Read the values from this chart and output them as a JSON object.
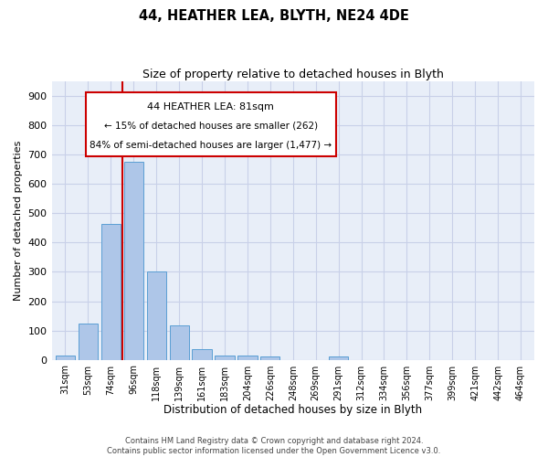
{
  "title": "44, HEATHER LEA, BLYTH, NE24 4DE",
  "subtitle": "Size of property relative to detached houses in Blyth",
  "xlabel": "Distribution of detached houses by size in Blyth",
  "ylabel": "Number of detached properties",
  "categories": [
    "31sqm",
    "53sqm",
    "74sqm",
    "96sqm",
    "118sqm",
    "139sqm",
    "161sqm",
    "183sqm",
    "204sqm",
    "226sqm",
    "248sqm",
    "269sqm",
    "291sqm",
    "312sqm",
    "334sqm",
    "356sqm",
    "377sqm",
    "399sqm",
    "421sqm",
    "442sqm",
    "464sqm"
  ],
  "values": [
    15,
    125,
    465,
    675,
    302,
    118,
    35,
    15,
    13,
    10,
    0,
    0,
    10,
    0,
    0,
    0,
    0,
    0,
    0,
    0,
    0
  ],
  "bar_color": "#aec6e8",
  "bar_edgecolor": "#5a9fd4",
  "vline_index": 3,
  "marker_label": "44 HEATHER LEA: 81sqm",
  "annotation_line1": "← 15% of detached houses are smaller (262)",
  "annotation_line2": "84% of semi-detached houses are larger (1,477) →",
  "vline_color": "#cc0000",
  "annotation_box_edgecolor": "#cc0000",
  "ylim": [
    0,
    950
  ],
  "yticks": [
    0,
    100,
    200,
    300,
    400,
    500,
    600,
    700,
    800,
    900
  ],
  "background_color": "#e8eef8",
  "grid_color": "#c8d0e8",
  "footer_line1": "Contains HM Land Registry data © Crown copyright and database right 2024.",
  "footer_line2": "Contains public sector information licensed under the Open Government Licence v3.0."
}
